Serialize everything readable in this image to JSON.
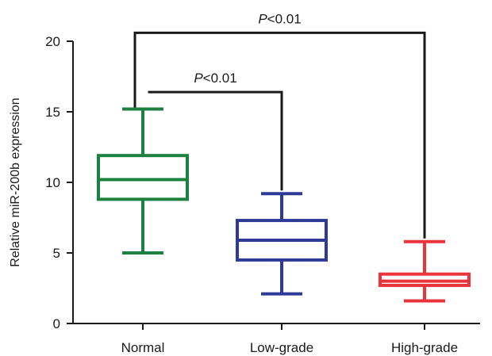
{
  "chart_data": {
    "type": "box",
    "ylabel": "Relative miR-200b expression",
    "xlabel": "",
    "ylim": [
      0,
      20
    ],
    "yticks": [
      0,
      5,
      10,
      15,
      20
    ],
    "categories": [
      "Normal",
      "Low-grade",
      "High-grade"
    ],
    "boxes": [
      {
        "category": "Normal",
        "min": 5.0,
        "q1": 8.8,
        "median": 10.2,
        "q3": 11.9,
        "max": 15.2,
        "color": "#1e8040"
      },
      {
        "category": "Low-grade",
        "min": 2.1,
        "q1": 4.5,
        "median": 5.9,
        "q3": 7.3,
        "max": 9.2,
        "color": "#2e3a97"
      },
      {
        "category": "High-grade",
        "min": 1.6,
        "q1": 2.7,
        "median": 3.0,
        "q3": 3.5,
        "max": 5.8,
        "color": "#e8343a"
      }
    ],
    "annotations": [
      {
        "from": "Normal",
        "to": "Low-grade",
        "p_symbol": "P",
        "p_rest": "<0.01",
        "bracket_y": 16.4
      },
      {
        "from": "Normal",
        "to": "High-grade",
        "p_symbol": "P",
        "p_rest": "<0.01",
        "bracket_y": 20.6
      }
    ]
  }
}
